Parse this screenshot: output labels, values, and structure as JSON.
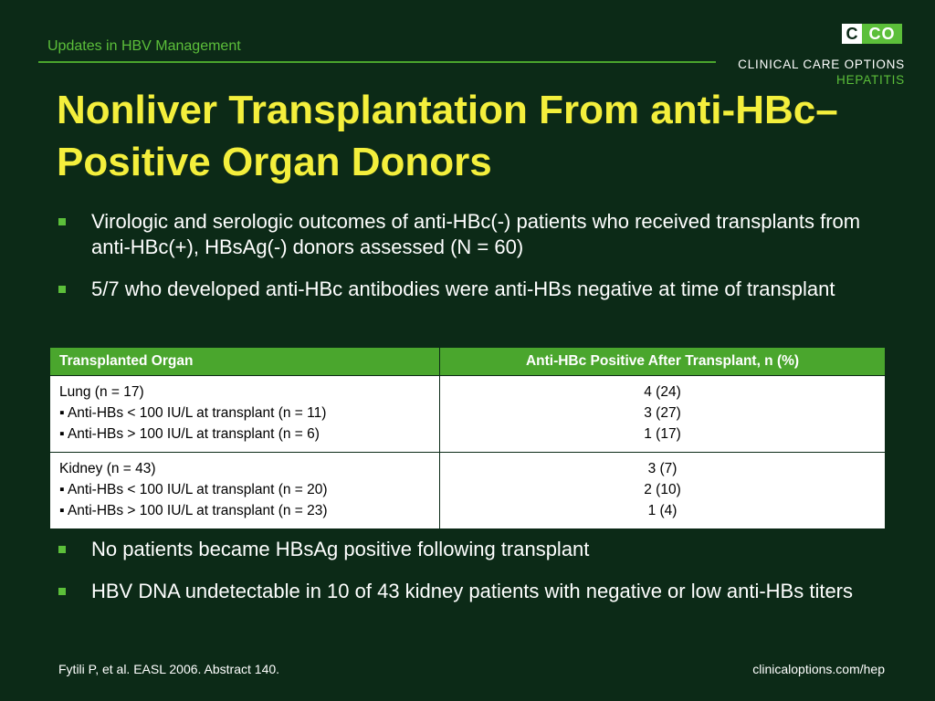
{
  "header": {
    "section_title": "Updates in HBV Management",
    "logo_left": "C",
    "logo_right": "CO",
    "brand_name": "CLINICAL CARE OPTIONS",
    "brand_sub": "HEPATITIS"
  },
  "slide": {
    "title": "Nonliver Transplantation From anti-HBc–Positive Organ Donors",
    "bullets_top": [
      "Virologic and serologic outcomes of anti-HBc(-) patients who received transplants from anti-HBc(+), HBsAg(-) donors assessed (N = 60)",
      "5/7 who developed anti-HBc antibodies were anti-HBs negative at time of transplant"
    ],
    "bullets_bottom": [
      "No patients became HBsAg positive following transplant",
      "HBV DNA undetectable in 10 of 43 kidney patients with negative or low anti-HBs titers"
    ]
  },
  "table": {
    "headers": [
      "Transplanted Organ",
      "Anti-HBc Positive After Transplant, n (%)"
    ],
    "rows": [
      {
        "organ": [
          "Lung (n = 17)",
          "▪ Anti-HBs < 100 IU/L at transplant (n = 11)",
          "▪ Anti-HBs > 100 IU/L at transplant (n = 6)"
        ],
        "values": [
          "4 (24)",
          "3 (27)",
          "1 (17)"
        ]
      },
      {
        "organ": [
          "Kidney (n = 43)",
          "▪ Anti-HBs < 100 IU/L at transplant (n = 20)",
          "▪ Anti-HBs > 100 IU/L at transplant (n = 23)"
        ],
        "values": [
          "3 (7)",
          "2 (10)",
          "1 (4)"
        ]
      }
    ]
  },
  "footer": {
    "citation": "Fytili P, et al. EASL 2006. Abstract 140.",
    "url": "clinicaloptions.com/hep"
  },
  "colors": {
    "background": "#0c2a17",
    "accent_green": "#4aa62d",
    "title_yellow": "#f4ef3c"
  }
}
